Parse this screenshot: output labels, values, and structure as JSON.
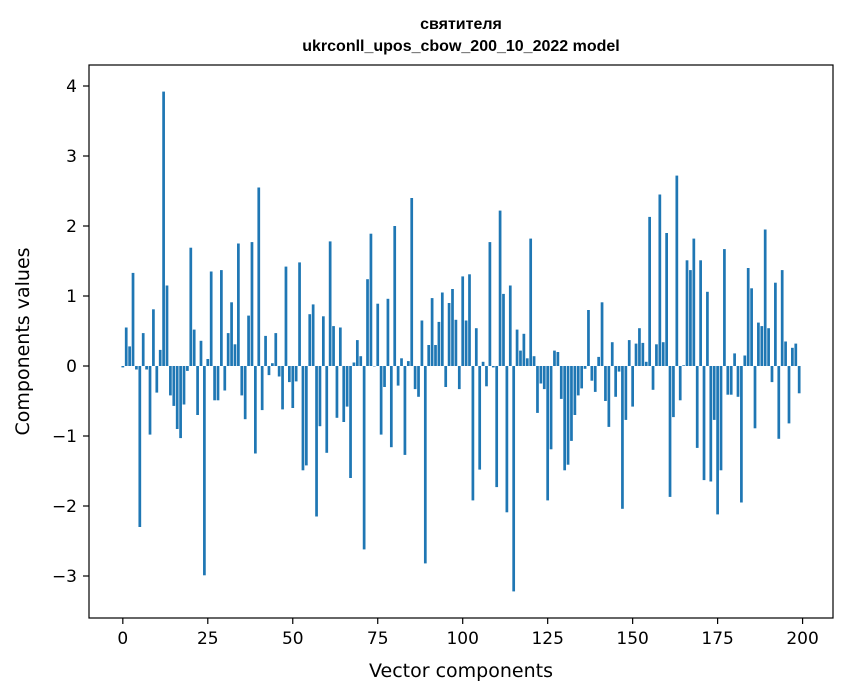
{
  "colors": {
    "bar": "#1f77b4",
    "axis": "#000000",
    "background": "#ffffff"
  },
  "chart_data": {
    "type": "bar",
    "title": "святителя",
    "subtitle": "ukrconll_upos_cbow_200_10_2022 model",
    "xlabel": "Vector components",
    "ylabel": "Components values",
    "xlim": [
      -9.95,
      208.95
    ],
    "ylim": [
      -3.6,
      4.3
    ],
    "xticks": [
      0,
      25,
      50,
      75,
      100,
      125,
      150,
      175,
      200
    ],
    "yticks": [
      -3,
      -2,
      -1,
      0,
      1,
      2,
      3,
      4
    ],
    "grid": false,
    "legend": "none",
    "x": [
      0,
      1,
      2,
      3,
      4,
      5,
      6,
      7,
      8,
      9,
      10,
      11,
      12,
      13,
      14,
      15,
      16,
      17,
      18,
      19,
      20,
      21,
      22,
      23,
      24,
      25,
      26,
      27,
      28,
      29,
      30,
      31,
      32,
      33,
      34,
      35,
      36,
      37,
      38,
      39,
      40,
      41,
      42,
      43,
      44,
      45,
      46,
      47,
      48,
      49,
      50,
      51,
      52,
      53,
      54,
      55,
      56,
      57,
      58,
      59,
      60,
      61,
      62,
      63,
      64,
      65,
      66,
      67,
      68,
      69,
      70,
      71,
      72,
      73,
      74,
      75,
      76,
      77,
      78,
      79,
      80,
      81,
      82,
      83,
      84,
      85,
      86,
      87,
      88,
      89,
      90,
      91,
      92,
      93,
      94,
      95,
      96,
      97,
      98,
      99,
      100,
      101,
      102,
      103,
      104,
      105,
      106,
      107,
      108,
      109,
      110,
      111,
      112,
      113,
      114,
      115,
      116,
      117,
      118,
      119,
      120,
      121,
      122,
      123,
      124,
      125,
      126,
      127,
      128,
      129,
      130,
      131,
      132,
      133,
      134,
      135,
      136,
      137,
      138,
      139,
      140,
      141,
      142,
      143,
      144,
      145,
      146,
      147,
      148,
      149,
      150,
      151,
      152,
      153,
      154,
      155,
      156,
      157,
      158,
      159,
      160,
      161,
      162,
      163,
      164,
      165,
      166,
      167,
      168,
      169,
      170,
      171,
      172,
      173,
      174,
      175,
      176,
      177,
      178,
      179,
      180,
      181,
      182,
      183,
      184,
      185,
      186,
      187,
      188,
      189,
      190,
      191,
      192,
      193,
      194,
      195,
      196,
      197,
      198,
      199
    ],
    "values": [
      -0.02,
      0.55,
      0.28,
      1.33,
      -0.05,
      -2.3,
      0.47,
      -0.05,
      -0.98,
      0.81,
      -0.38,
      0.23,
      3.92,
      1.15,
      -0.42,
      -0.57,
      -0.9,
      -1.03,
      -0.55,
      -0.07,
      1.69,
      0.52,
      -0.7,
      0.36,
      -2.99,
      0.1,
      1.35,
      -0.49,
      -0.49,
      1.37,
      -0.35,
      0.47,
      0.91,
      0.31,
      1.75,
      -0.42,
      -0.76,
      0.72,
      1.77,
      -1.25,
      2.55,
      -0.63,
      0.43,
      -0.13,
      0.04,
      0.47,
      -0.15,
      -0.62,
      1.42,
      -0.23,
      -0.6,
      -0.22,
      1.48,
      -1.49,
      -1.42,
      0.74,
      0.88,
      -2.15,
      -0.86,
      0.71,
      -1.24,
      1.78,
      0.57,
      -0.74,
      0.55,
      -0.8,
      -0.58,
      -1.6,
      0.05,
      0.37,
      0.14,
      -2.62,
      1.24,
      1.89,
      0.0,
      0.89,
      -0.98,
      -0.3,
      0.96,
      -1.16,
      2.0,
      -0.28,
      0.11,
      -1.27,
      0.07,
      2.4,
      -0.33,
      -0.44,
      0.65,
      -2.82,
      0.3,
      0.97,
      0.3,
      0.63,
      1.05,
      -0.3,
      0.9,
      1.1,
      0.66,
      -0.33,
      1.28,
      0.65,
      1.31,
      -1.92,
      0.54,
      -1.48,
      0.06,
      -0.29,
      1.77,
      -0.02,
      -1.73,
      2.22,
      1.03,
      -2.09,
      1.15,
      -3.22,
      0.52,
      0.22,
      0.46,
      0.11,
      1.82,
      0.14,
      -0.67,
      -0.25,
      -0.33,
      -1.92,
      -1.19,
      0.22,
      0.2,
      -0.47,
      -1.49,
      -1.41,
      -1.07,
      -0.7,
      -0.42,
      -0.32,
      -0.04,
      0.8,
      -0.21,
      -0.37,
      0.13,
      0.91,
      -0.5,
      -0.87,
      0.34,
      -0.44,
      -0.08,
      -2.04,
      -0.77,
      0.37,
      -0.58,
      0.32,
      0.54,
      0.33,
      0.06,
      2.13,
      -0.34,
      0.31,
      2.45,
      0.34,
      1.9,
      -1.87,
      -0.73,
      2.72,
      -0.49,
      0.01,
      1.51,
      1.37,
      1.82,
      -1.17,
      1.51,
      -1.63,
      1.06,
      -1.65,
      -0.77,
      -2.12,
      -1.49,
      1.67,
      -0.41,
      -0.41,
      0.18,
      -0.44,
      -1.95,
      0.15,
      1.4,
      1.11,
      -0.89,
      0.62,
      0.57,
      1.95,
      0.54,
      -0.23,
      1.19,
      -1.04,
      1.37,
      0.35,
      -0.82,
      0.26,
      0.32,
      -0.39
    ]
  }
}
